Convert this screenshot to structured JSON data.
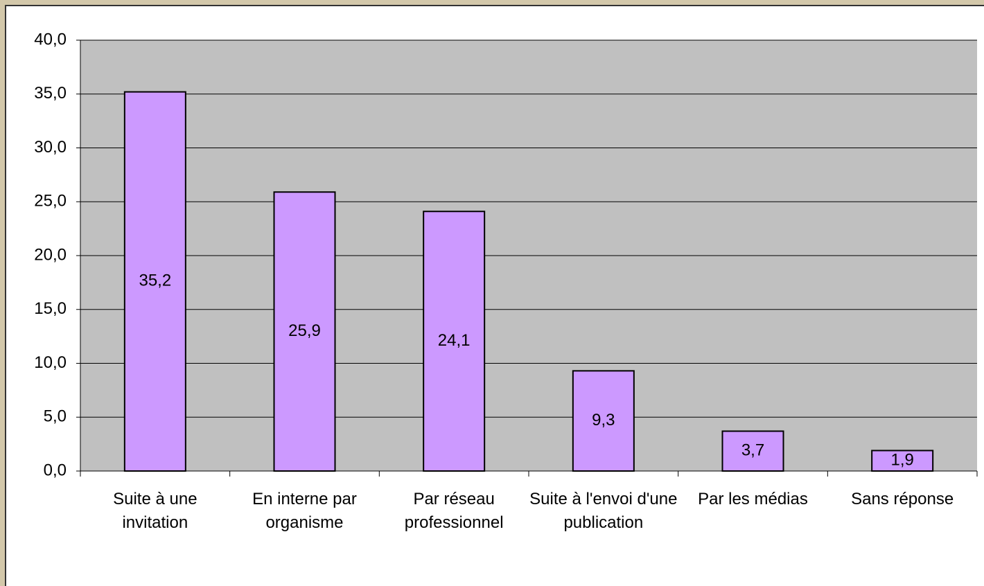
{
  "chart_data": {
    "type": "bar",
    "categories": [
      "Suite à une invitation",
      "En interne par organisme",
      "Par réseau professionnel",
      "Suite à l'envoi d'une publication",
      "Par les médias",
      "Sans réponse"
    ],
    "values": [
      35.2,
      25.9,
      24.1,
      9.3,
      3.7,
      1.9
    ],
    "value_labels": [
      "35,2",
      "25,9",
      "24,1",
      "9,3",
      "3,7",
      "1,9"
    ],
    "color": "#cc99ff",
    "ylim": [
      0,
      40
    ],
    "yticks": [
      {
        "value": 0,
        "label": "0,0"
      },
      {
        "value": 5,
        "label": "5,0"
      },
      {
        "value": 10,
        "label": "10,0"
      },
      {
        "value": 15,
        "label": "15,0"
      },
      {
        "value": 20,
        "label": "20,0"
      },
      {
        "value": 25,
        "label": "25,0"
      },
      {
        "value": 30,
        "label": "30,0"
      },
      {
        "value": 35,
        "label": "35,0"
      },
      {
        "value": 40,
        "label": "40,0"
      }
    ],
    "grid": true
  }
}
